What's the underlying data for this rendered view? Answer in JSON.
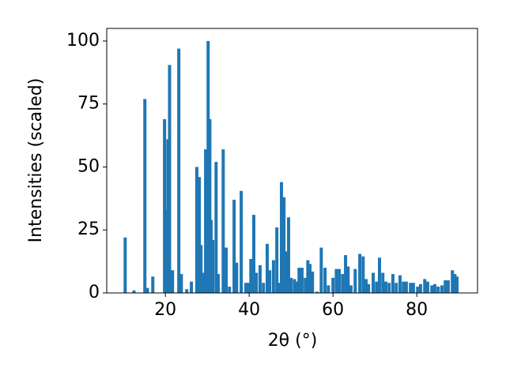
{
  "chart_data": {
    "type": "bar",
    "x": [
      10.4,
      12.5,
      15.1,
      15.7,
      17,
      19.8,
      20.4,
      20.6,
      21,
      21.7,
      23.2,
      23.8,
      25.1,
      26.2,
      27.5,
      28.1,
      28.5,
      29.2,
      29.6,
      30.2,
      30.6,
      30.9,
      31.3,
      32.1,
      32.6,
      33.8,
      34.5,
      35.3,
      36.4,
      37,
      38.1,
      39.2,
      39.8,
      40.4,
      41.1,
      41.7,
      42.6,
      43.4,
      44.3,
      44.9,
      45.8,
      46.6,
      47.2,
      47.7,
      48.3,
      48.9,
      49.4,
      50,
      50.8,
      51.3,
      51.9,
      52.6,
      53.4,
      54,
      54.5,
      55.1,
      56.2,
      57.2,
      58.1,
      58.9,
      60,
      60.8,
      61.5,
      62.3,
      63,
      63.6,
      64.3,
      65.3,
      66.4,
      67.2,
      67.9,
      68.5,
      69.6,
      70.4,
      71.1,
      71.9,
      72.6,
      73.4,
      74.3,
      75.1,
      76,
      76.8,
      77.5,
      78.5,
      79.2,
      80.2,
      80.9,
      81.9,
      82.6,
      83.6,
      84.3,
      85.1,
      86,
      86.8,
      87.5,
      88.5,
      89.1,
      89.6
    ],
    "values": [
      22,
      1,
      77,
      2,
      6.5,
      69,
      33,
      61,
      90.5,
      9,
      97,
      7.5,
      1.5,
      4.5,
      50,
      46,
      19,
      8,
      57,
      100,
      69,
      29,
      21,
      52,
      7.5,
      57,
      18,
      2.5,
      37,
      12,
      40.5,
      4,
      4,
      13.5,
      31,
      8,
      11,
      4,
      19.5,
      9,
      13,
      26,
      4,
      44,
      38,
      16.5,
      30,
      6,
      5.5,
      4.5,
      10,
      10,
      6,
      13,
      11.5,
      8.5,
      0.5,
      18,
      10,
      3,
      6,
      9.5,
      9.5,
      7.5,
      15,
      10.5,
      3,
      9.5,
      15.5,
      14.5,
      5.5,
      3.5,
      8,
      4.5,
      14,
      8,
      4.5,
      4,
      7.5,
      4,
      7,
      4.5,
      4.5,
      4,
      4,
      2.5,
      3.5,
      5.5,
      4.5,
      3,
      3.5,
      2.5,
      3,
      5,
      5,
      9,
      7.5,
      6.5
    ],
    "color": "#1f77b4",
    "xlabel": "2θ (°)",
    "ylabel": "Intensities (scaled)",
    "xlim": [
      6,
      94.5
    ],
    "ylim": [
      0,
      105
    ],
    "xticks": [
      20,
      40,
      60,
      80
    ],
    "yticks": [
      0,
      25,
      50,
      75,
      100
    ]
  }
}
